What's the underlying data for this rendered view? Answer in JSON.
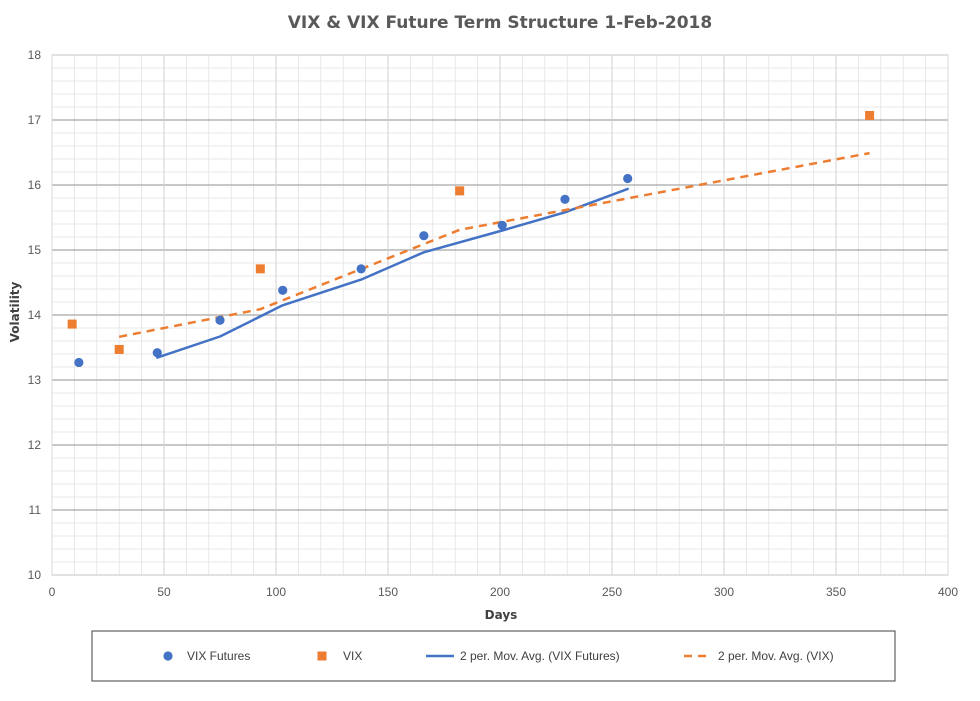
{
  "chart_data": {
    "type": "scatter",
    "title": "VIX & VIX Future Term Structure 1-Feb-2018",
    "xlabel": "Days",
    "ylabel": "Volatility",
    "xlim": [
      0,
      400
    ],
    "ylim": [
      10,
      18
    ],
    "x_ticks": [
      "0",
      "50",
      "100",
      "150",
      "200",
      "250",
      "300",
      "350",
      "400"
    ],
    "y_ticks": [
      "10",
      "11",
      "12",
      "13",
      "14",
      "15",
      "16",
      "17",
      "18"
    ],
    "y_major_step": 1,
    "y_minor_step": 0.2,
    "x_major_step": 50,
    "x_minor_step": 10,
    "grid": true,
    "legend_position": "bottom",
    "series": [
      {
        "name": "VIX Futures",
        "marker": "circle",
        "color": "#4472C4",
        "x": [
          12,
          47,
          75,
          103,
          138,
          166,
          201,
          229,
          257
        ],
        "y": [
          13.27,
          13.42,
          13.92,
          14.38,
          14.71,
          15.22,
          15.38,
          15.78,
          16.1
        ]
      },
      {
        "name": "VIX",
        "marker": "square",
        "color": "#ED7D31",
        "x": [
          9,
          30,
          93,
          182,
          365
        ],
        "y": [
          13.86,
          13.47,
          14.71,
          15.91,
          17.07
        ]
      },
      {
        "name": "2 per. Mov. Avg. (VIX Futures)",
        "line": "solid",
        "color": "#4472C4",
        "trend_of": "VIX Futures"
      },
      {
        "name": "2 per. Mov. Avg. (VIX)",
        "line": "dashed",
        "color": "#ED7D31",
        "trend_of": "VIX"
      }
    ]
  }
}
